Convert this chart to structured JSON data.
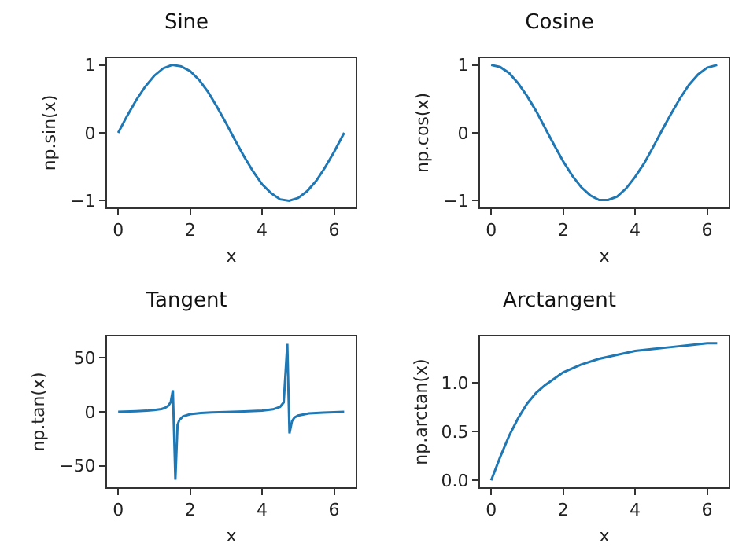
{
  "chart_data": [
    {
      "type": "line",
      "title": "Sine",
      "xlabel": "x",
      "ylabel": "np.sin(x)",
      "color": "#1f77b4",
      "xlim": [
        -0.31,
        6.6
      ],
      "ylim": [
        -1.1,
        1.1
      ],
      "xticks": [
        0,
        2,
        4,
        6
      ],
      "yticks": [
        {
          "value": -1,
          "label": "−1"
        },
        0,
        1
      ],
      "x": [
        0,
        0.25,
        0.5,
        0.75,
        1,
        1.25,
        1.5,
        1.75,
        2,
        2.25,
        2.5,
        2.75,
        3,
        3.25,
        3.5,
        3.75,
        4,
        4.25,
        4.5,
        4.75,
        5,
        5.25,
        5.5,
        5.75,
        6,
        6.28
      ],
      "values": [
        0,
        0.25,
        0.48,
        0.68,
        0.84,
        0.95,
        1.0,
        0.98,
        0.91,
        0.78,
        0.6,
        0.38,
        0.14,
        -0.11,
        -0.35,
        -0.57,
        -0.76,
        -0.89,
        -0.98,
        -1.0,
        -0.96,
        -0.86,
        -0.71,
        -0.51,
        -0.28,
        0
      ]
    },
    {
      "type": "line",
      "title": "Cosine",
      "xlabel": "x",
      "ylabel": "np.cos(x)",
      "color": "#1f77b4",
      "xlim": [
        -0.31,
        6.6
      ],
      "ylim": [
        -1.1,
        1.1
      ],
      "xticks": [
        0,
        2,
        4,
        6
      ],
      "yticks": [
        {
          "value": -1,
          "label": "−1"
        },
        0,
        1
      ],
      "x": [
        0,
        0.25,
        0.5,
        0.75,
        1,
        1.25,
        1.5,
        1.75,
        2,
        2.25,
        2.5,
        2.75,
        3,
        3.25,
        3.5,
        3.75,
        4,
        4.25,
        4.5,
        4.75,
        5,
        5.25,
        5.5,
        5.75,
        6,
        6.28
      ],
      "values": [
        1,
        0.97,
        0.88,
        0.73,
        0.54,
        0.32,
        0.07,
        -0.18,
        -0.42,
        -0.63,
        -0.8,
        -0.92,
        -0.99,
        -0.99,
        -0.94,
        -0.82,
        -0.65,
        -0.45,
        -0.21,
        0.04,
        0.28,
        0.51,
        0.71,
        0.86,
        0.96,
        1.0
      ]
    },
    {
      "type": "line",
      "title": "Tangent",
      "xlabel": "x",
      "ylabel": "np.tan(x)",
      "color": "#1f77b4",
      "xlim": [
        -0.31,
        6.6
      ],
      "ylim": [
        -70,
        70
      ],
      "xticks": [
        0,
        2,
        4,
        6
      ],
      "yticks": [
        {
          "value": -50,
          "label": "−50"
        },
        0,
        50
      ],
      "x": [
        0,
        0.5,
        0.8,
        1.0,
        1.2,
        1.3,
        1.4,
        1.46,
        1.52,
        1.59,
        1.65,
        1.7,
        1.8,
        2.0,
        2.3,
        2.6,
        3.0,
        3.5,
        4.0,
        4.3,
        4.5,
        4.6,
        4.7,
        4.76,
        4.83,
        4.9,
        5.0,
        5.3,
        5.7,
        6.0,
        6.28
      ],
      "values": [
        0,
        0.55,
        1.0,
        1.6,
        2.6,
        3.6,
        5.8,
        9,
        20,
        -63,
        -12,
        -7.7,
        -4.3,
        -2.2,
        -1.1,
        -0.6,
        -0.14,
        0.37,
        1.16,
        2.3,
        4.6,
        8.7,
        63,
        -20,
        -8.6,
        -5.3,
        -3.4,
        -1.5,
        -0.7,
        -0.29,
        0
      ]
    },
    {
      "type": "line",
      "title": "Arctangent",
      "xlabel": "x",
      "ylabel": "np.arctan(x)",
      "color": "#1f77b4",
      "xlim": [
        -0.31,
        6.6
      ],
      "ylim": [
        -0.07,
        1.48
      ],
      "xticks": [
        0,
        2,
        4,
        6
      ],
      "yticks": [
        {
          "value": 0,
          "label": "0.0"
        },
        {
          "value": 0.5,
          "label": "0.5"
        },
        {
          "value": 1,
          "label": "1.0"
        }
      ],
      "x": [
        0,
        0.25,
        0.5,
        0.75,
        1,
        1.25,
        1.5,
        2,
        2.5,
        3,
        3.5,
        4,
        4.5,
        5,
        5.5,
        6,
        6.28
      ],
      "values": [
        0,
        0.24,
        0.46,
        0.64,
        0.79,
        0.9,
        0.98,
        1.11,
        1.19,
        1.25,
        1.29,
        1.33,
        1.35,
        1.37,
        1.39,
        1.41,
        1.41
      ]
    }
  ]
}
